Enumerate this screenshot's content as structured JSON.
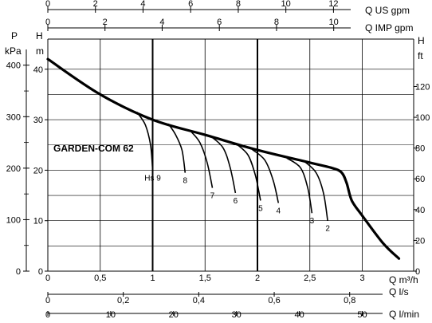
{
  "chart_data": {
    "type": "line",
    "title": "GARDEN-COM 62",
    "top_axes": [
      {
        "unit_label": "Q US gpm",
        "ticks": [
          "0",
          "2",
          "4",
          "6",
          "8",
          "10",
          "12"
        ],
        "tick_values_m3h": [
          0,
          0.4542,
          0.9085,
          1.3627,
          1.817,
          2.2712,
          2.7255
        ]
      },
      {
        "unit_label": "Q IMP gpm",
        "ticks": [
          "0",
          "2",
          "4",
          "6",
          "8",
          "10"
        ],
        "tick_values_m3h": [
          0,
          0.5455,
          1.091,
          1.6366,
          2.1821,
          2.7276
        ]
      }
    ],
    "bottom_axes": [
      {
        "unit_label": "Q m³/h",
        "ticks": [
          "0",
          "0,5",
          "1",
          "1,5",
          "2",
          "2,5",
          "3"
        ],
        "tick_values_m3h": [
          0,
          0.5,
          1,
          1.5,
          2,
          2.5,
          3
        ]
      },
      {
        "unit_label": "Q l/s",
        "ticks": [
          "0",
          "0,2",
          "0,4",
          "0,6",
          "0,8"
        ],
        "tick_values_m3h": [
          0,
          0.72,
          1.44,
          2.16,
          2.88
        ]
      },
      {
        "unit_label": "Q l/min",
        "ticks": [
          "0",
          "10",
          "20",
          "30",
          "40",
          "50"
        ],
        "tick_values_m3h": [
          0,
          0.6,
          1.2,
          1.8,
          2.4,
          3.0
        ]
      }
    ],
    "left_axes": [
      {
        "label_top": "P",
        "label_bottom": "kPa",
        "ticks": [
          "0",
          "100",
          "200",
          "300",
          "400"
        ],
        "tick_values_m": [
          0,
          10.2,
          20.4,
          30.6,
          40.8
        ]
      },
      {
        "label_top": "H",
        "label_bottom": "m",
        "ticks": [
          "0",
          "10",
          "20",
          "30",
          "40"
        ],
        "tick_values_m": [
          0,
          10,
          20,
          30,
          40
        ]
      }
    ],
    "right_axis": {
      "label_top": "H",
      "label_bottom": "ft",
      "ticks": [
        "0",
        "20",
        "40",
        "60",
        "80",
        "100",
        "120"
      ],
      "tick_values_m": [
        0,
        6.096,
        12.192,
        18.288,
        24.384,
        30.48,
        36.576
      ]
    },
    "xlim_m3h": [
      0,
      3.55
    ],
    "ylim_m": [
      0,
      44
    ],
    "grid": true,
    "main_curve": {
      "x": [
        0,
        0.5,
        1.0,
        1.5,
        2.0,
        2.5,
        2.7,
        2.8,
        2.85,
        2.9,
        3.0,
        3.2,
        3.35
      ],
      "y": [
        42,
        35,
        30,
        27,
        24,
        21.5,
        20.5,
        19.6,
        17.5,
        14,
        11,
        5.5,
        2.5
      ]
    },
    "limit_curves": [
      {
        "name": "Hs 9",
        "x": [
          0.85,
          0.93,
          0.98,
          1.0
        ],
        "y": [
          31.5,
          29,
          25,
          20
        ]
      },
      {
        "name": "8",
        "x": [
          1.15,
          1.22,
          1.28,
          1.31
        ],
        "y": [
          29.2,
          27,
          24,
          19.5
        ]
      },
      {
        "name": "7",
        "x": [
          1.36,
          1.45,
          1.52,
          1.57
        ],
        "y": [
          27.8,
          25.5,
          21.5,
          16.5
        ]
      },
      {
        "name": "6",
        "x": [
          1.55,
          1.67,
          1.74,
          1.79
        ],
        "y": [
          26.8,
          24.5,
          20.5,
          15.5
        ]
      },
      {
        "name": "5",
        "x": [
          1.8,
          1.91,
          1.98,
          2.03
        ],
        "y": [
          25.2,
          23,
          19,
          14
        ]
      },
      {
        "name": "4",
        "x": [
          1.95,
          2.07,
          2.15,
          2.2
        ],
        "y": [
          24.1,
          22,
          18,
          13.5
        ]
      },
      {
        "name": "3",
        "x": [
          2.28,
          2.41,
          2.48,
          2.52
        ],
        "y": [
          22.4,
          20.5,
          16.5,
          11.5
        ]
      },
      {
        "name": "2",
        "x": [
          2.45,
          2.56,
          2.63,
          2.67
        ],
        "y": [
          21.7,
          19.5,
          15.5,
          10
        ]
      }
    ]
  }
}
